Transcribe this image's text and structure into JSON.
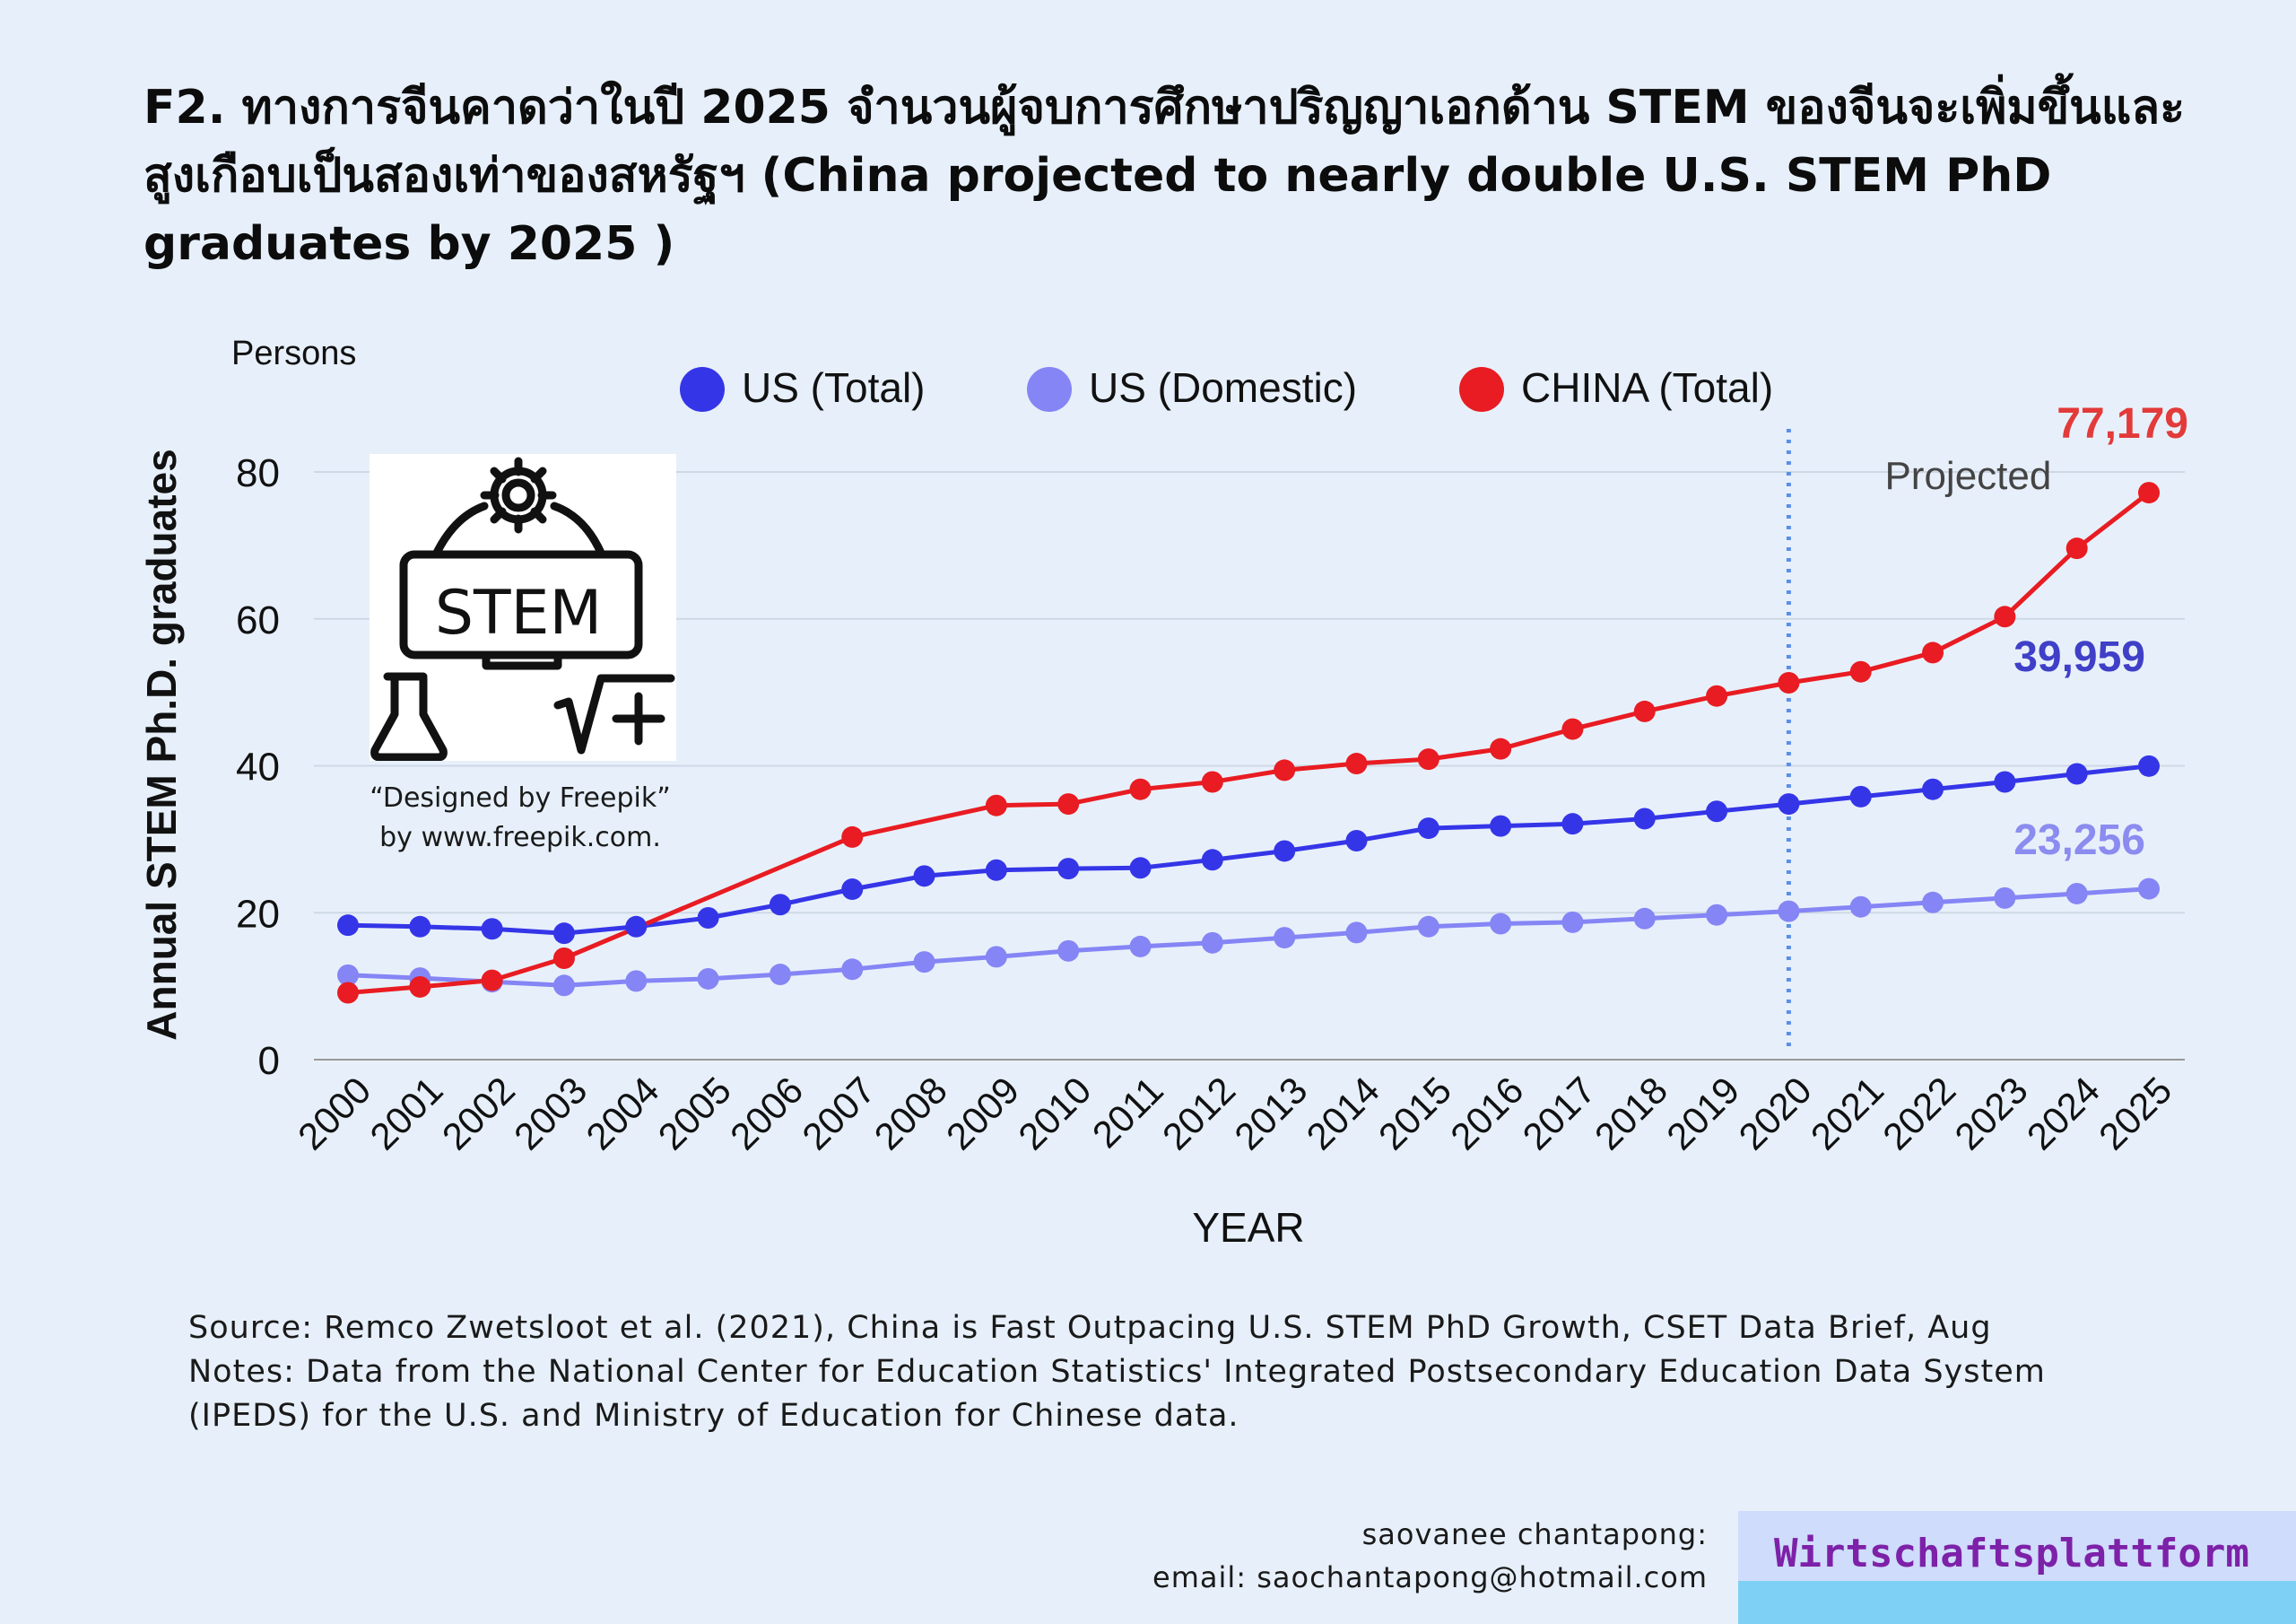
{
  "header": {
    "title": "F2. ทางการจีนคาดว่าในปี 2025 จำนวนผู้จบการศึกษาปริญญาเอกด้าน STEM ของจีนจะเพิ่มขึ้นและสูงเกือบเป็นสองเท่าของสหรัฐฯ (China projected to nearly double U.S. STEM PhD graduates by 2025 )"
  },
  "chart_data": {
    "type": "line",
    "unit_label": "Persons",
    "xlabel": "YEAR",
    "ylabel": "Annual STEM Ph.D. graduates",
    "ylim": [
      0,
      80
    ],
    "yticks": [
      "0",
      "20",
      "40",
      "60",
      "80"
    ],
    "grid": true,
    "legend_position": "top",
    "categories": [
      "2000",
      "2001",
      "2002",
      "2003",
      "2004",
      "2005",
      "2006",
      "2007",
      "2008",
      "2009",
      "2010",
      "2011",
      "2012",
      "2013",
      "2014",
      "2015",
      "2016",
      "2017",
      "2018",
      "2019",
      "2020",
      "2021",
      "2022",
      "2023",
      "2024",
      "2025"
    ],
    "series": [
      {
        "name": "US (Total)",
        "color": "#3535e8",
        "values": [
          18.3,
          18.1,
          17.8,
          17.2,
          18.1,
          19.3,
          21.1,
          23.2,
          25.0,
          25.8,
          26.0,
          26.1,
          27.2,
          28.4,
          29.8,
          31.5,
          31.8,
          32.1,
          32.8,
          33.8,
          34.8,
          35.8,
          36.8,
          37.8,
          38.9,
          39.959
        ]
      },
      {
        "name": "US (Domestic)",
        "color": "#8585f5",
        "values": [
          11.5,
          11.1,
          10.6,
          10.1,
          10.7,
          11.0,
          11.6,
          12.3,
          13.3,
          14.0,
          14.8,
          15.4,
          15.9,
          16.6,
          17.3,
          18.1,
          18.5,
          18.7,
          19.2,
          19.7,
          20.2,
          20.8,
          21.4,
          22.0,
          22.6,
          23.256
        ]
      },
      {
        "name": "CHINA (Total)",
        "color": "#e81c22",
        "values": [
          9.1,
          9.9,
          10.8,
          13.8,
          null,
          null,
          null,
          30.3,
          null,
          34.6,
          34.8,
          36.8,
          37.8,
          39.4,
          40.3,
          40.9,
          42.3,
          45.0,
          47.4,
          49.5,
          51.3,
          52.8,
          55.4,
          60.3,
          69.6,
          77.179
        ]
      }
    ],
    "projection_start": "2020",
    "annotations": {
      "projected_label": "Projected",
      "china_end_label": "77,179",
      "us_total_end_label": "39,959",
      "us_domestic_end_label": "23,256"
    }
  },
  "image_credit": {
    "icon_text": "STEM",
    "line1": "“Designed by Freepik”",
    "line2": "by www.freepik.com."
  },
  "footer": {
    "source": "Source: Remco Zwetsloot et al. (2021), China is Fast Outpacing U.S. STEM PhD Growth, CSET Data Brief, Aug",
    "notes_line1": "Notes: Data from the National Center for Education Statistics' Integrated Postsecondary Education Data System",
    "notes_line2": "(IPEDS) for the U.S. and Ministry of Education for Chinese data.",
    "author": "saovanee chantapong:",
    "email": "email: saochantapong@hotmail.com",
    "brand": "Wirtschaftsplattform"
  }
}
